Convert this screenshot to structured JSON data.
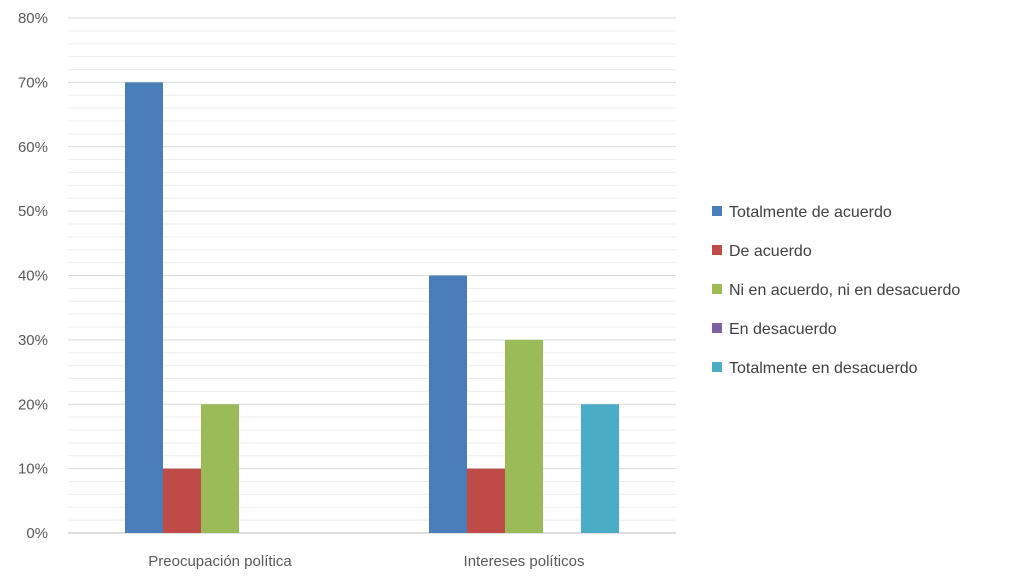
{
  "chart_data": {
    "type": "bar",
    "title": "",
    "xlabel": "",
    "ylabel": "",
    "categories": [
      "Preocupación política",
      "Intereses políticos"
    ],
    "series": [
      {
        "name": "Totalmente de acuerdo",
        "values": [
          70,
          40
        ],
        "color": "#4a7ebb"
      },
      {
        "name": "De acuerdo",
        "values": [
          10,
          10
        ],
        "color": "#be4b48"
      },
      {
        "name": "Ni en acuerdo, ni en desacuerdo",
        "values": [
          20,
          30
        ],
        "color": "#9bbb59"
      },
      {
        "name": "En desacuerdo",
        "values": [
          0,
          0
        ],
        "color": "#7f60a0"
      },
      {
        "name": "Totalmente en desacuerdo",
        "values": [
          0,
          20
        ],
        "color": "#4bacc6"
      }
    ],
    "ylim": [
      0,
      80
    ],
    "y_ticks": [
      "0%",
      "10%",
      "20%",
      "30%",
      "40%",
      "50%",
      "60%",
      "70%",
      "80%"
    ],
    "value_format": "percent",
    "grid": true,
    "minor_grid": true,
    "legend_position": "right"
  }
}
